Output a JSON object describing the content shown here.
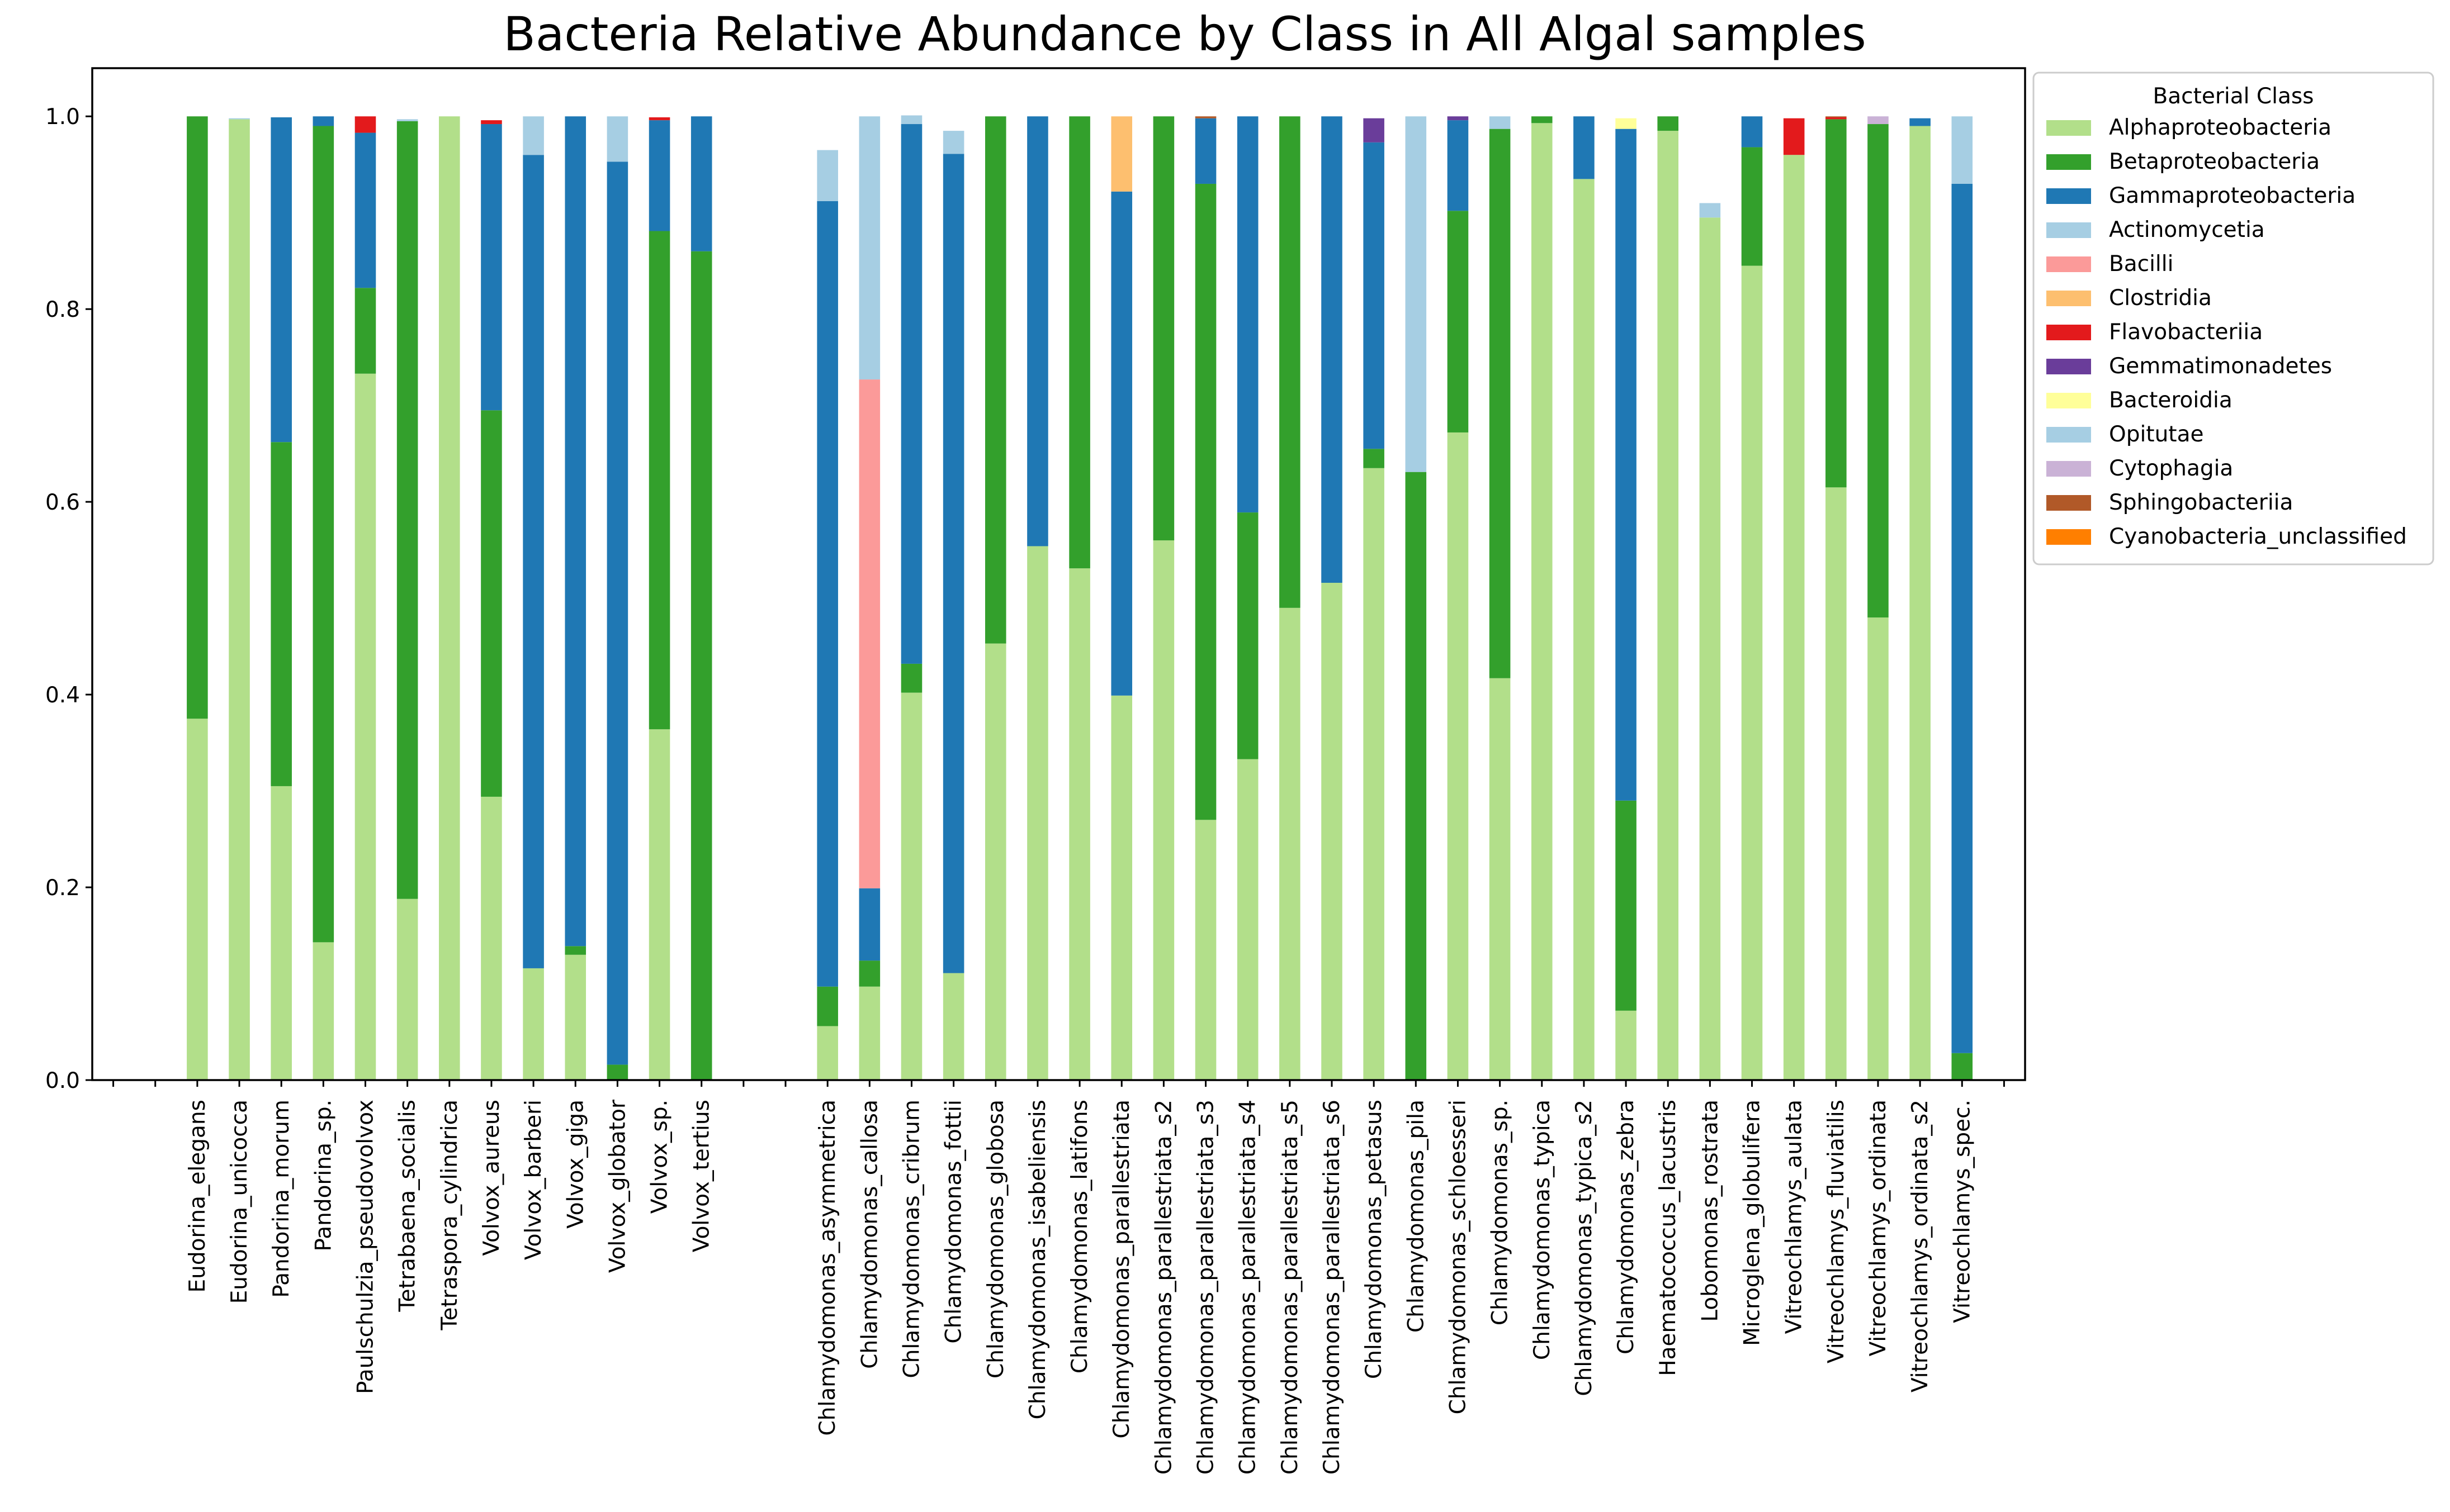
{
  "chart_data": {
    "type": "bar",
    "stacked": true,
    "title": "Bacteria Relative Abundance by Class in  All Algal samples",
    "xlabel": "",
    "ylabel": "",
    "ylim": [
      0,
      1.05
    ],
    "yticks": [
      "0.0",
      "0.2",
      "0.4",
      "0.6",
      "0.8",
      "1.0"
    ],
    "legend_title": "Bacterial Class",
    "legend_position": "outside-right",
    "grid": false,
    "category_slots": 46,
    "categories": [
      {
        "slot": 2,
        "label": "Eudorina_elegans"
      },
      {
        "slot": 3,
        "label": "Eudorina_unicocca"
      },
      {
        "slot": 4,
        "label": "Pandorina_morum"
      },
      {
        "slot": 5,
        "label": "Pandorina_sp."
      },
      {
        "slot": 6,
        "label": "Paulschulzia_pseudovolvox"
      },
      {
        "slot": 7,
        "label": "Tetrabaena_socialis"
      },
      {
        "slot": 8,
        "label": "Tetraspora_cylindrica"
      },
      {
        "slot": 9,
        "label": "Volvox_aureus"
      },
      {
        "slot": 10,
        "label": "Volvox_barberi"
      },
      {
        "slot": 11,
        "label": "Volvox_giga"
      },
      {
        "slot": 12,
        "label": "Volvox_globator"
      },
      {
        "slot": 13,
        "label": "Volvox_sp."
      },
      {
        "slot": 14,
        "label": "Volvox_tertius"
      },
      {
        "slot": 17,
        "label": "Chlamydomonas_asymmetrica"
      },
      {
        "slot": 18,
        "label": "Chlamydomonas_callosa"
      },
      {
        "slot": 19,
        "label": "Chlamydomonas_cribrum"
      },
      {
        "slot": 20,
        "label": "Chlamydomonas_fottii"
      },
      {
        "slot": 21,
        "label": "Chlamydomonas_globosa"
      },
      {
        "slot": 22,
        "label": "Chlamydomonas_isabeliensis"
      },
      {
        "slot": 23,
        "label": "Chlamydomonas_latifons"
      },
      {
        "slot": 24,
        "label": "Chlamydomonas_parallestriata"
      },
      {
        "slot": 25,
        "label": "Chlamydomonas_parallestriata_s2"
      },
      {
        "slot": 26,
        "label": "Chlamydomonas_parallestriata_s3"
      },
      {
        "slot": 27,
        "label": "Chlamydomonas_parallestriata_s4"
      },
      {
        "slot": 28,
        "label": "Chlamydomonas_parallestriata_s5"
      },
      {
        "slot": 29,
        "label": "Chlamydomonas_parallestriata_s6"
      },
      {
        "slot": 30,
        "label": "Chlamydomonas_petasus"
      },
      {
        "slot": 31,
        "label": "Chlamydomonas_pila"
      },
      {
        "slot": 32,
        "label": "Chlamydomonas_schloesseri"
      },
      {
        "slot": 33,
        "label": "Chlamydomonas_sp."
      },
      {
        "slot": 34,
        "label": "Chlamydomonas_typica"
      },
      {
        "slot": 35,
        "label": "Chlamydomonas_typica_s2"
      },
      {
        "slot": 36,
        "label": "Chlamydomonas_zebra"
      },
      {
        "slot": 37,
        "label": "Haematococcus_lacustris"
      },
      {
        "slot": 38,
        "label": "Lobomonas_rostrata"
      },
      {
        "slot": 39,
        "label": "Microglena_globulifera"
      },
      {
        "slot": 40,
        "label": "Vitreochlamys_aulata"
      },
      {
        "slot": 41,
        "label": "Vitreochlamys_fluviatilis"
      },
      {
        "slot": 42,
        "label": "Vitreochlamys_ordinata"
      },
      {
        "slot": 43,
        "label": "Vitreochlamys_ordinata_s2"
      },
      {
        "slot": 44,
        "label": "Vitreochlamys_spec."
      }
    ],
    "series": [
      {
        "name": "Alphaproteobacteria",
        "color": "#b2df8a",
        "values": [
          0.375,
          0.997,
          0.305,
          0.143,
          0.733,
          0.188,
          1.0,
          0.294,
          0.116,
          0.13,
          0.0,
          0.364,
          0.0,
          0.056,
          0.097,
          0.402,
          0.111,
          0.453,
          0.554,
          0.531,
          0.399,
          0.56,
          0.27,
          0.333,
          0.49,
          0.516,
          0.635,
          0.0,
          0.672,
          0.417,
          0.993,
          0.935,
          0.072,
          0.985,
          0.895,
          0.845,
          0.96,
          0.615,
          0.48,
          0.99,
          0.0
        ]
      },
      {
        "name": "Betaproteobacteria",
        "color": "#33a02c",
        "values": [
          0.625,
          0.0,
          0.357,
          0.847,
          0.089,
          0.807,
          0.0,
          0.401,
          0.0,
          0.009,
          0.016,
          0.517,
          0.86,
          0.041,
          0.027,
          0.03,
          0.0,
          0.547,
          0.0,
          0.469,
          0.0,
          0.44,
          0.66,
          0.256,
          0.51,
          0.0,
          0.02,
          0.631,
          0.23,
          0.57,
          0.007,
          0.0,
          0.218,
          0.015,
          0.0,
          0.123,
          0.0,
          0.382,
          0.512,
          0.0,
          0.028
        ]
      },
      {
        "name": "Gammaproteobacteria",
        "color": "#1f78b4",
        "values": [
          0.0,
          0.0,
          0.337,
          0.01,
          0.161,
          0.0,
          0.0,
          0.297,
          0.844,
          0.861,
          0.937,
          0.115,
          0.14,
          0.815,
          0.075,
          0.56,
          0.85,
          0.0,
          0.446,
          0.0,
          0.523,
          0.0,
          0.068,
          0.411,
          0.0,
          0.484,
          0.318,
          0.0,
          0.094,
          0.0,
          0.0,
          0.065,
          0.697,
          0.0,
          0.0,
          0.032,
          0.0,
          0.0,
          0.0,
          0.008,
          0.902
        ]
      },
      {
        "name": "Actinomycetia",
        "color": "#a6cee3",
        "values": [
          0.0,
          0.001,
          0.0,
          0.0,
          0.0,
          0.002,
          0.0,
          0.0,
          0.0,
          0.0,
          0.0,
          0.0,
          0.0,
          0.0,
          0.0,
          0.0,
          0.0,
          0.0,
          0.0,
          0.0,
          0.0,
          0.0,
          0.0,
          0.0,
          0.0,
          0.0,
          0.0,
          0.0,
          0.0,
          0.0,
          0.0,
          0.0,
          0.0,
          0.0,
          0.0,
          0.0,
          0.0,
          0.0,
          0.0,
          0.0,
          0.0
        ]
      },
      {
        "name": "Bacilli",
        "color": "#fb9a99",
        "values": [
          0.0,
          0.0,
          0.0,
          0.0,
          0.0,
          0.0,
          0.0,
          0.0,
          0.0,
          0.0,
          0.0,
          0.0,
          0.0,
          0.0,
          0.528,
          0.0,
          0.0,
          0.0,
          0.0,
          0.0,
          0.0,
          0.0,
          0.0,
          0.0,
          0.0,
          0.0,
          0.0,
          0.0,
          0.0,
          0.0,
          0.0,
          0.0,
          0.0,
          0.0,
          0.0,
          0.0,
          0.0,
          0.0,
          0.0,
          0.0,
          0.0
        ]
      },
      {
        "name": "Clostridia",
        "color": "#fdbf6f",
        "values": [
          0.0,
          0.0,
          0.0,
          0.0,
          0.0,
          0.0,
          0.0,
          0.0,
          0.0,
          0.0,
          0.0,
          0.0,
          0.0,
          0.0,
          0.0,
          0.0,
          0.0,
          0.0,
          0.0,
          0.0,
          0.078,
          0.0,
          0.0,
          0.0,
          0.0,
          0.0,
          0.0,
          0.0,
          0.0,
          0.0,
          0.0,
          0.0,
          0.0,
          0.0,
          0.0,
          0.0,
          0.0,
          0.0,
          0.0,
          0.0,
          0.0
        ]
      },
      {
        "name": "Flavobacteriia",
        "color": "#e31a1c",
        "values": [
          0.0,
          0.0,
          0.0,
          0.0,
          0.017,
          0.0,
          0.0,
          0.004,
          0.0,
          0.0,
          0.0,
          0.003,
          0.0,
          0.0,
          0.0,
          0.0,
          0.0,
          0.0,
          0.0,
          0.0,
          0.0,
          0.0,
          0.0,
          0.0,
          0.0,
          0.0,
          0.0,
          0.0,
          0.0,
          0.0,
          0.0,
          0.0,
          0.0,
          0.0,
          0.0,
          0.0,
          0.038,
          0.002,
          0.0,
          0.0,
          0.0
        ]
      },
      {
        "name": "Gemmatimonadetes",
        "color": "#6a3d9a",
        "values": [
          0.0,
          0.0,
          0.0,
          0.0,
          0.0,
          0.0,
          0.0,
          0.0,
          0.0,
          0.0,
          0.0,
          0.0,
          0.0,
          0.0,
          0.0,
          0.0,
          0.0,
          0.0,
          0.0,
          0.0,
          0.0,
          0.0,
          0.0,
          0.0,
          0.0,
          0.0,
          0.025,
          0.0,
          0.004,
          0.0,
          0.0,
          0.0,
          0.0,
          0.0,
          0.0,
          0.0,
          0.0,
          0.0,
          0.0,
          0.0,
          0.0
        ]
      },
      {
        "name": "Bacteroidia",
        "color": "#ffff99",
        "values": [
          0.0,
          0.0,
          0.0,
          0.0,
          0.0,
          0.0,
          0.0,
          0.0,
          0.0,
          0.0,
          0.0,
          0.0,
          0.0,
          0.0,
          0.0,
          0.0,
          0.0,
          0.0,
          0.0,
          0.0,
          0.0,
          0.0,
          0.0,
          0.0,
          0.0,
          0.0,
          0.0,
          0.0,
          0.0,
          0.0,
          0.0,
          0.0,
          0.011,
          0.0,
          0.0,
          0.0,
          0.0,
          0.0,
          0.0,
          0.0,
          0.0
        ]
      },
      {
        "name": "Opitutae",
        "color": "#a6cee3",
        "values": [
          0.0,
          0.0,
          0.0,
          0.0,
          0.0,
          0.0,
          0.0,
          0.0,
          0.04,
          0.0,
          0.047,
          0.0,
          0.0,
          0.053,
          0.273,
          0.009,
          0.024,
          0.0,
          0.0,
          0.0,
          0.0,
          0.0,
          0.0,
          0.0,
          0.0,
          0.0,
          0.0,
          0.369,
          0.0,
          0.013,
          0.0,
          0.0,
          0.0,
          0.0,
          0.015,
          0.0,
          0.0,
          0.0,
          0.0,
          0.0,
          0.07
        ]
      },
      {
        "name": "Cytophagia",
        "color": "#cab2d6",
        "values": [
          0.0,
          0.0,
          0.0,
          0.0,
          0.0,
          0.0,
          0.0,
          0.0,
          0.0,
          0.0,
          0.0,
          0.0,
          0.0,
          0.0,
          0.0,
          0.0,
          0.0,
          0.0,
          0.0,
          0.0,
          0.0,
          0.0,
          0.0,
          0.0,
          0.0,
          0.0,
          0.0,
          0.0,
          0.0,
          0.0,
          0.0,
          0.0,
          0.0,
          0.0,
          0.0,
          0.0,
          0.0,
          0.0,
          0.008,
          0.0,
          0.0
        ]
      },
      {
        "name": "Sphingobacteriia",
        "color": "#b15928",
        "values": [
          0.0,
          0.0,
          0.0,
          0.0,
          0.0,
          0.0,
          0.0,
          0.0,
          0.0,
          0.0,
          0.0,
          0.0,
          0.0,
          0.0,
          0.0,
          0.0,
          0.0,
          0.0,
          0.0,
          0.0,
          0.0,
          0.0,
          0.002,
          0.0,
          0.0,
          0.0,
          0.0,
          0.0,
          0.0,
          0.0,
          0.0,
          0.0,
          0.0,
          0.0,
          0.0,
          0.0,
          0.0,
          0.001,
          0.0,
          0.0,
          0.0
        ]
      },
      {
        "name": "Cyanobacteria_unclassified",
        "color": "#ff7f00",
        "values": [
          0.0,
          0.0,
          0.0,
          0.0,
          0.0,
          0.0,
          0.0,
          0.0,
          0.0,
          0.0,
          0.0,
          0.0,
          0.0,
          0.0,
          0.0,
          0.0,
          0.0,
          0.0,
          0.0,
          0.0,
          0.0,
          0.0,
          0.0,
          0.0,
          0.0,
          0.0,
          0.0,
          0.0,
          0.0,
          0.0,
          0.0,
          0.0,
          0.0,
          0.0,
          0.0,
          0.0,
          0.0,
          0.0,
          0.0,
          0.0,
          0.0
        ]
      }
    ]
  }
}
